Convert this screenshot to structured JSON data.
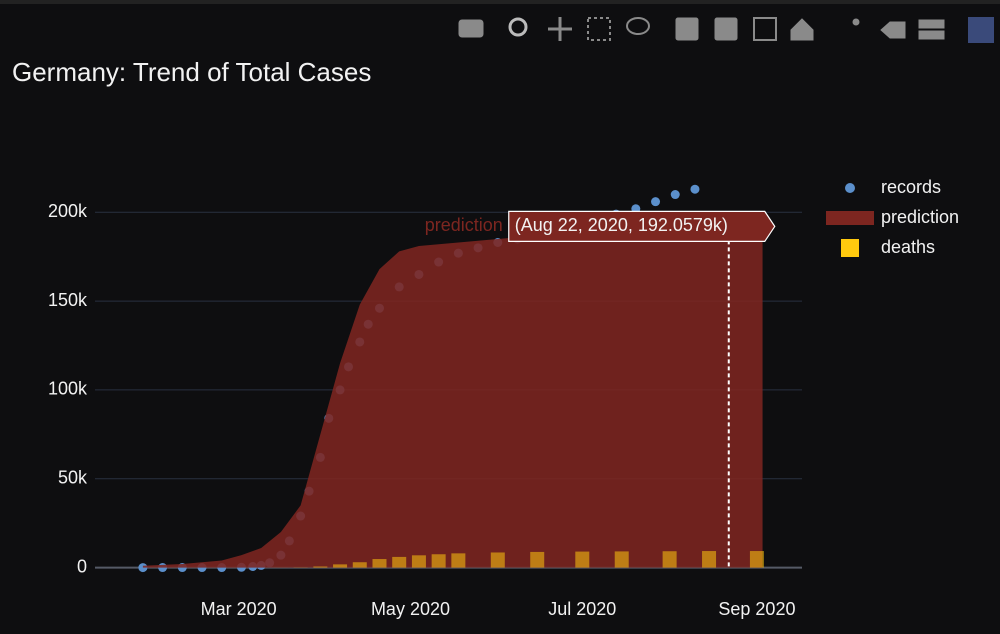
{
  "chart_data": {
    "type": "timeseries",
    "title": "Germany: Trend of Total Cases",
    "xlim": [
      "2020-01-10",
      "2020-09-17"
    ],
    "ylim": [
      -7000,
      221000
    ],
    "xticks": [
      {
        "value": "2020-03-01",
        "label": "Mar 2020"
      },
      {
        "value": "2020-05-01",
        "label": "May 2020"
      },
      {
        "value": "2020-07-01",
        "label": "Jul 2020"
      },
      {
        "value": "2020-09-01",
        "label": "Sep 2020"
      }
    ],
    "yticks": [
      0,
      {
        "value": 50000,
        "label": "50k"
      },
      {
        "value": 100000,
        "label": "100k"
      },
      {
        "value": 150000,
        "label": "150k"
      },
      {
        "value": 200000,
        "label": "200k"
      }
    ],
    "grid": true,
    "legend": "right",
    "series": [
      {
        "name": "records",
        "kind": "markers",
        "color": "#5b8fcb",
        "x": [
          "2020-01-27",
          "2020-02-03",
          "2020-02-10",
          "2020-02-17",
          "2020-02-24",
          "2020-03-02",
          "2020-03-06",
          "2020-03-09",
          "2020-03-12",
          "2020-03-16",
          "2020-03-19",
          "2020-03-23",
          "2020-03-26",
          "2020-03-30",
          "2020-04-02",
          "2020-04-06",
          "2020-04-09",
          "2020-04-13",
          "2020-04-16",
          "2020-04-20",
          "2020-04-27",
          "2020-05-04",
          "2020-05-11",
          "2020-05-18",
          "2020-05-25",
          "2020-06-01",
          "2020-06-08",
          "2020-06-15",
          "2020-06-22",
          "2020-06-29",
          "2020-07-06",
          "2020-07-13",
          "2020-07-20",
          "2020-07-27",
          "2020-08-03",
          "2020-08-10"
        ],
        "values": [
          1,
          10,
          14,
          16,
          16,
          150,
          600,
          1200,
          2700,
          7000,
          15000,
          29000,
          43000,
          62000,
          84000,
          100000,
          113000,
          127000,
          137000,
          146000,
          158000,
          165000,
          172000,
          177000,
          180000,
          183000,
          185000,
          187000,
          191000,
          195000,
          197000,
          199000,
          202000,
          206000,
          210000,
          213000
        ]
      },
      {
        "name": "prediction",
        "kind": "area",
        "color": "#7d2620",
        "x": [
          "2020-01-27",
          "2020-02-10",
          "2020-02-24",
          "2020-03-02",
          "2020-03-09",
          "2020-03-16",
          "2020-03-23",
          "2020-03-30",
          "2020-04-06",
          "2020-04-13",
          "2020-04-20",
          "2020-04-27",
          "2020-05-04",
          "2020-05-11",
          "2020-06-01",
          "2020-07-01",
          "2020-08-01",
          "2020-08-22",
          "2020-09-03"
        ],
        "values": [
          1000,
          2000,
          4000,
          7000,
          11000,
          20000,
          35000,
          75000,
          115000,
          148000,
          168000,
          178000,
          181000,
          182000,
          185000,
          189000,
          191000,
          192057.9,
          192300
        ]
      },
      {
        "name": "deaths",
        "kind": "bars",
        "color": "#ffc90e",
        "x": [
          "2020-03-16",
          "2020-03-23",
          "2020-03-30",
          "2020-04-06",
          "2020-04-13",
          "2020-04-20",
          "2020-04-27",
          "2020-05-04",
          "2020-05-11",
          "2020-05-18",
          "2020-06-01",
          "2020-06-15",
          "2020-07-01",
          "2020-07-15",
          "2020-08-01",
          "2020-08-15",
          "2020-09-01"
        ],
        "values": [
          20,
          100,
          600,
          1800,
          3000,
          4800,
          6000,
          6900,
          7500,
          8000,
          8500,
          8800,
          9000,
          9100,
          9200,
          9300,
          9300
        ]
      }
    ],
    "hover": {
      "x": "2020-08-22",
      "value": 192057.9,
      "label": "(Aug 22, 2020, 192.0579k)",
      "name": "prediction"
    }
  }
}
